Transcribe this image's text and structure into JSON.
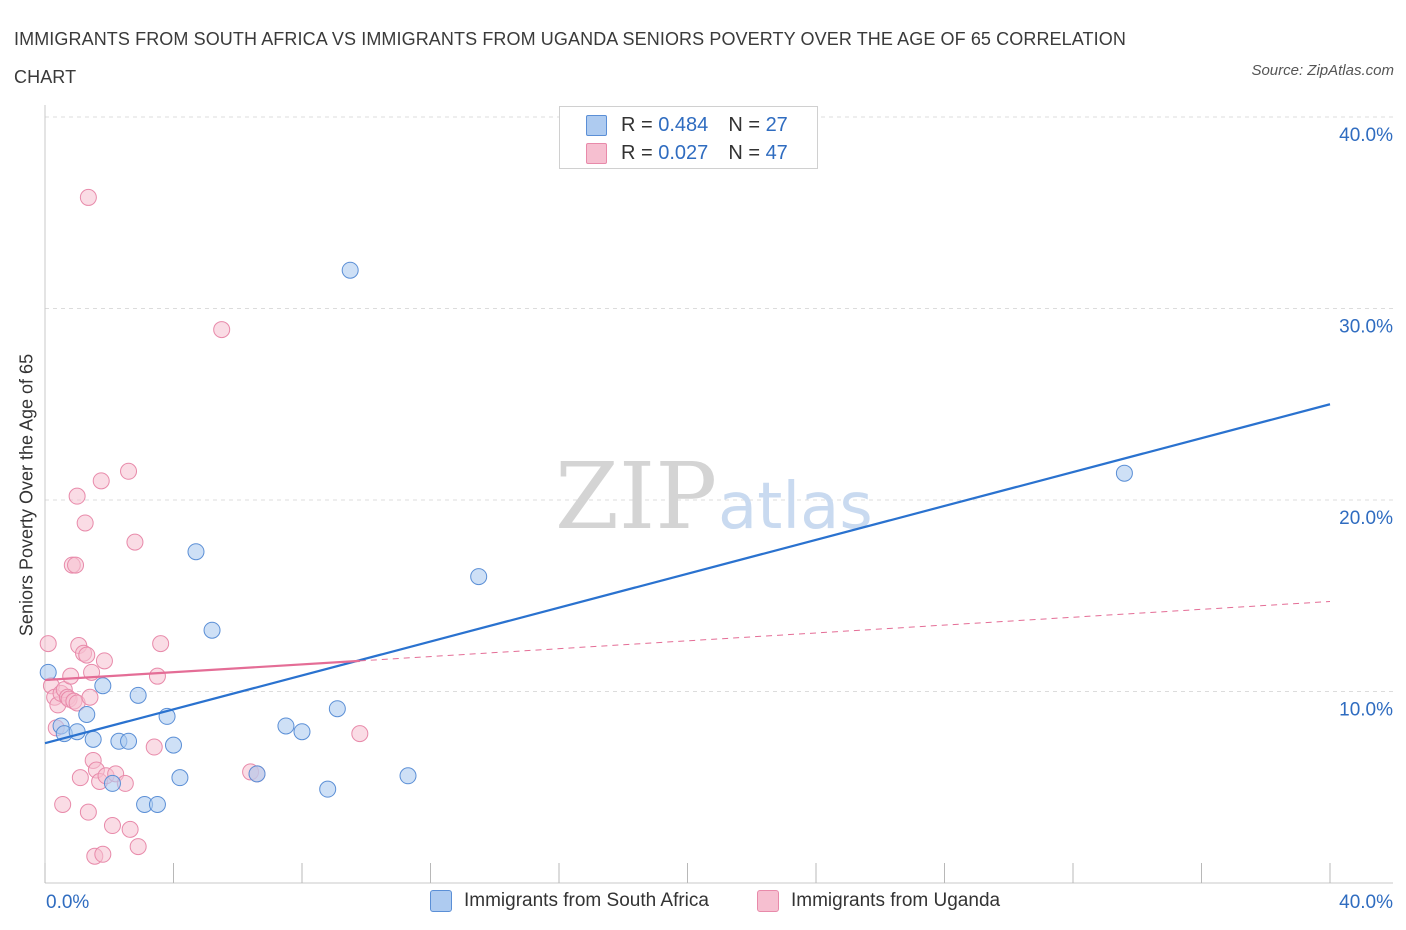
{
  "title": "IMMIGRANTS FROM SOUTH AFRICA VS IMMIGRANTS FROM UGANDA SENIORS POVERTY OVER THE AGE OF 65 CORRELATION CHART",
  "source": "Source: ZipAtlas.com",
  "watermark": {
    "zip": "ZIP",
    "atlas": "atlas"
  },
  "legend_top": [
    {
      "r_label": "R =",
      "r_value": "0.484",
      "n_label": "N =",
      "n_value": "27"
    },
    {
      "r_label": "R =",
      "r_value": "0.027",
      "n_label": "N =",
      "n_value": "47"
    }
  ],
  "colors": {
    "south_africa_fill": "#aecbf0",
    "south_africa_stroke": "#5b8fd6",
    "south_africa_line": "#2a72cf",
    "uganda_fill": "#f6bfd0",
    "uganda_stroke": "#e88aaa",
    "uganda_line": "#e46d96",
    "tick_text": "#2f6cc0",
    "grid": "#dcdcdc"
  },
  "chart_data": {
    "type": "scatter",
    "xlabel": "",
    "ylabel": "Seniors Poverty Over the Age of 65",
    "xlim": [
      0,
      40
    ],
    "ylim": [
      0,
      40
    ],
    "x_tick_labels": [
      "0.0%",
      "40.0%"
    ],
    "y_tick_labels": [
      "10.0%",
      "20.0%",
      "30.0%",
      "40.0%"
    ],
    "y_ticks": [
      10,
      20,
      30,
      40
    ],
    "grid": "horizontal dashed",
    "legend_placement": "top-center and bottom",
    "series": [
      {
        "name": "Immigrants from South Africa",
        "points": [
          [
            0.1,
            11.0
          ],
          [
            0.5,
            8.2
          ],
          [
            0.6,
            7.8
          ],
          [
            1.0,
            7.9
          ],
          [
            1.3,
            8.8
          ],
          [
            1.5,
            7.5
          ],
          [
            1.8,
            10.3
          ],
          [
            2.1,
            5.2
          ],
          [
            2.3,
            7.4
          ],
          [
            2.6,
            7.4
          ],
          [
            2.9,
            9.8
          ],
          [
            3.1,
            4.1
          ],
          [
            3.5,
            4.1
          ],
          [
            3.8,
            8.7
          ],
          [
            4.0,
            7.2
          ],
          [
            4.2,
            5.5
          ],
          [
            4.7,
            17.3
          ],
          [
            5.2,
            13.2
          ],
          [
            6.6,
            5.7
          ],
          [
            7.5,
            8.2
          ],
          [
            8.0,
            7.9
          ],
          [
            8.8,
            4.9
          ],
          [
            9.1,
            9.1
          ],
          [
            9.5,
            32.0
          ],
          [
            11.3,
            5.6
          ],
          [
            13.5,
            16.0
          ],
          [
            33.6,
            21.4
          ]
        ],
        "trend": {
          "x": [
            0,
            40
          ],
          "y": [
            7.3,
            25.0
          ]
        }
      },
      {
        "name": "Immigrants from Uganda",
        "points": [
          [
            0.1,
            12.5
          ],
          [
            0.2,
            10.3
          ],
          [
            0.3,
            9.7
          ],
          [
            0.35,
            8.1
          ],
          [
            0.4,
            9.3
          ],
          [
            0.5,
            9.9
          ],
          [
            0.6,
            10.1
          ],
          [
            0.7,
            9.7
          ],
          [
            0.75,
            9.6
          ],
          [
            0.8,
            10.8
          ],
          [
            0.9,
            9.5
          ],
          [
            1.0,
            9.4
          ],
          [
            0.55,
            4.1
          ],
          [
            1.0,
            20.2
          ],
          [
            1.1,
            5.5
          ],
          [
            0.85,
            16.6
          ],
          [
            0.95,
            16.6
          ],
          [
            1.05,
            12.4
          ],
          [
            1.2,
            12.0
          ],
          [
            1.25,
            18.8
          ],
          [
            1.3,
            11.9
          ],
          [
            1.35,
            3.7
          ],
          [
            1.4,
            9.7
          ],
          [
            1.45,
            11.0
          ],
          [
            1.5,
            6.4
          ],
          [
            1.55,
            1.4
          ],
          [
            1.6,
            5.9
          ],
          [
            1.7,
            5.3
          ],
          [
            1.75,
            21.0
          ],
          [
            1.8,
            1.5
          ],
          [
            1.85,
            11.6
          ],
          [
            1.9,
            5.6
          ],
          [
            2.1,
            3.0
          ],
          [
            2.2,
            5.7
          ],
          [
            2.5,
            5.2
          ],
          [
            2.6,
            21.5
          ],
          [
            2.65,
            2.8
          ],
          [
            2.8,
            17.8
          ],
          [
            2.9,
            1.9
          ],
          [
            3.4,
            7.1
          ],
          [
            3.5,
            10.8
          ],
          [
            3.6,
            12.5
          ],
          [
            1.35,
            35.8
          ],
          [
            5.5,
            28.9
          ],
          [
            6.4,
            5.8
          ],
          [
            6.6,
            5.7
          ],
          [
            9.8,
            7.8
          ]
        ],
        "trend": {
          "x": [
            0,
            9.8
          ],
          "y": [
            10.6,
            11.6
          ]
        },
        "trend_extension": {
          "x": [
            9.8,
            40
          ],
          "y": [
            11.6,
            14.7
          ]
        }
      }
    ]
  }
}
